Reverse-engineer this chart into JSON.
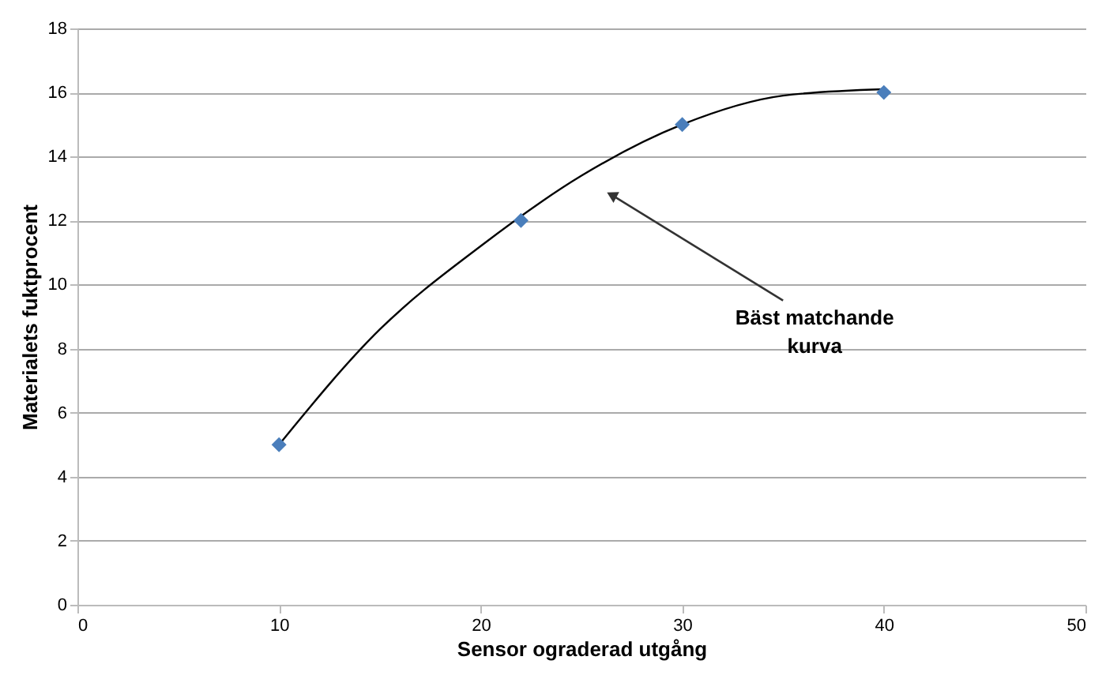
{
  "chart_data": {
    "type": "scatter",
    "xlabel": "Sensor ograderad utgång",
    "ylabel": "Materialets fuktprocent",
    "xlim": [
      0,
      50
    ],
    "xticks": [
      0,
      10,
      20,
      30,
      40,
      50
    ],
    "ylim": [
      0,
      18
    ],
    "yticks": [
      0,
      2,
      4,
      6,
      8,
      10,
      12,
      14,
      16,
      18
    ],
    "grid": "y",
    "marker": "diamond",
    "x": [
      10,
      22,
      30,
      40
    ],
    "series": [
      {
        "color": "#4a7ebb",
        "values": [
          5,
          12,
          15,
          16
        ]
      },
      {
        "type": "line",
        "color": "#000000",
        "line_style": "solid",
        "marker": "none",
        "x": [
          10,
          15,
          20,
          25,
          30,
          35,
          40
        ],
        "values": [
          5,
          8.6,
          11.2,
          13.4,
          15,
          15.9,
          16.1
        ]
      }
    ],
    "annotations": [
      {
        "text": "Bäst matchande kurva",
        "x": 26.5,
        "y": 12.8
      }
    ]
  }
}
